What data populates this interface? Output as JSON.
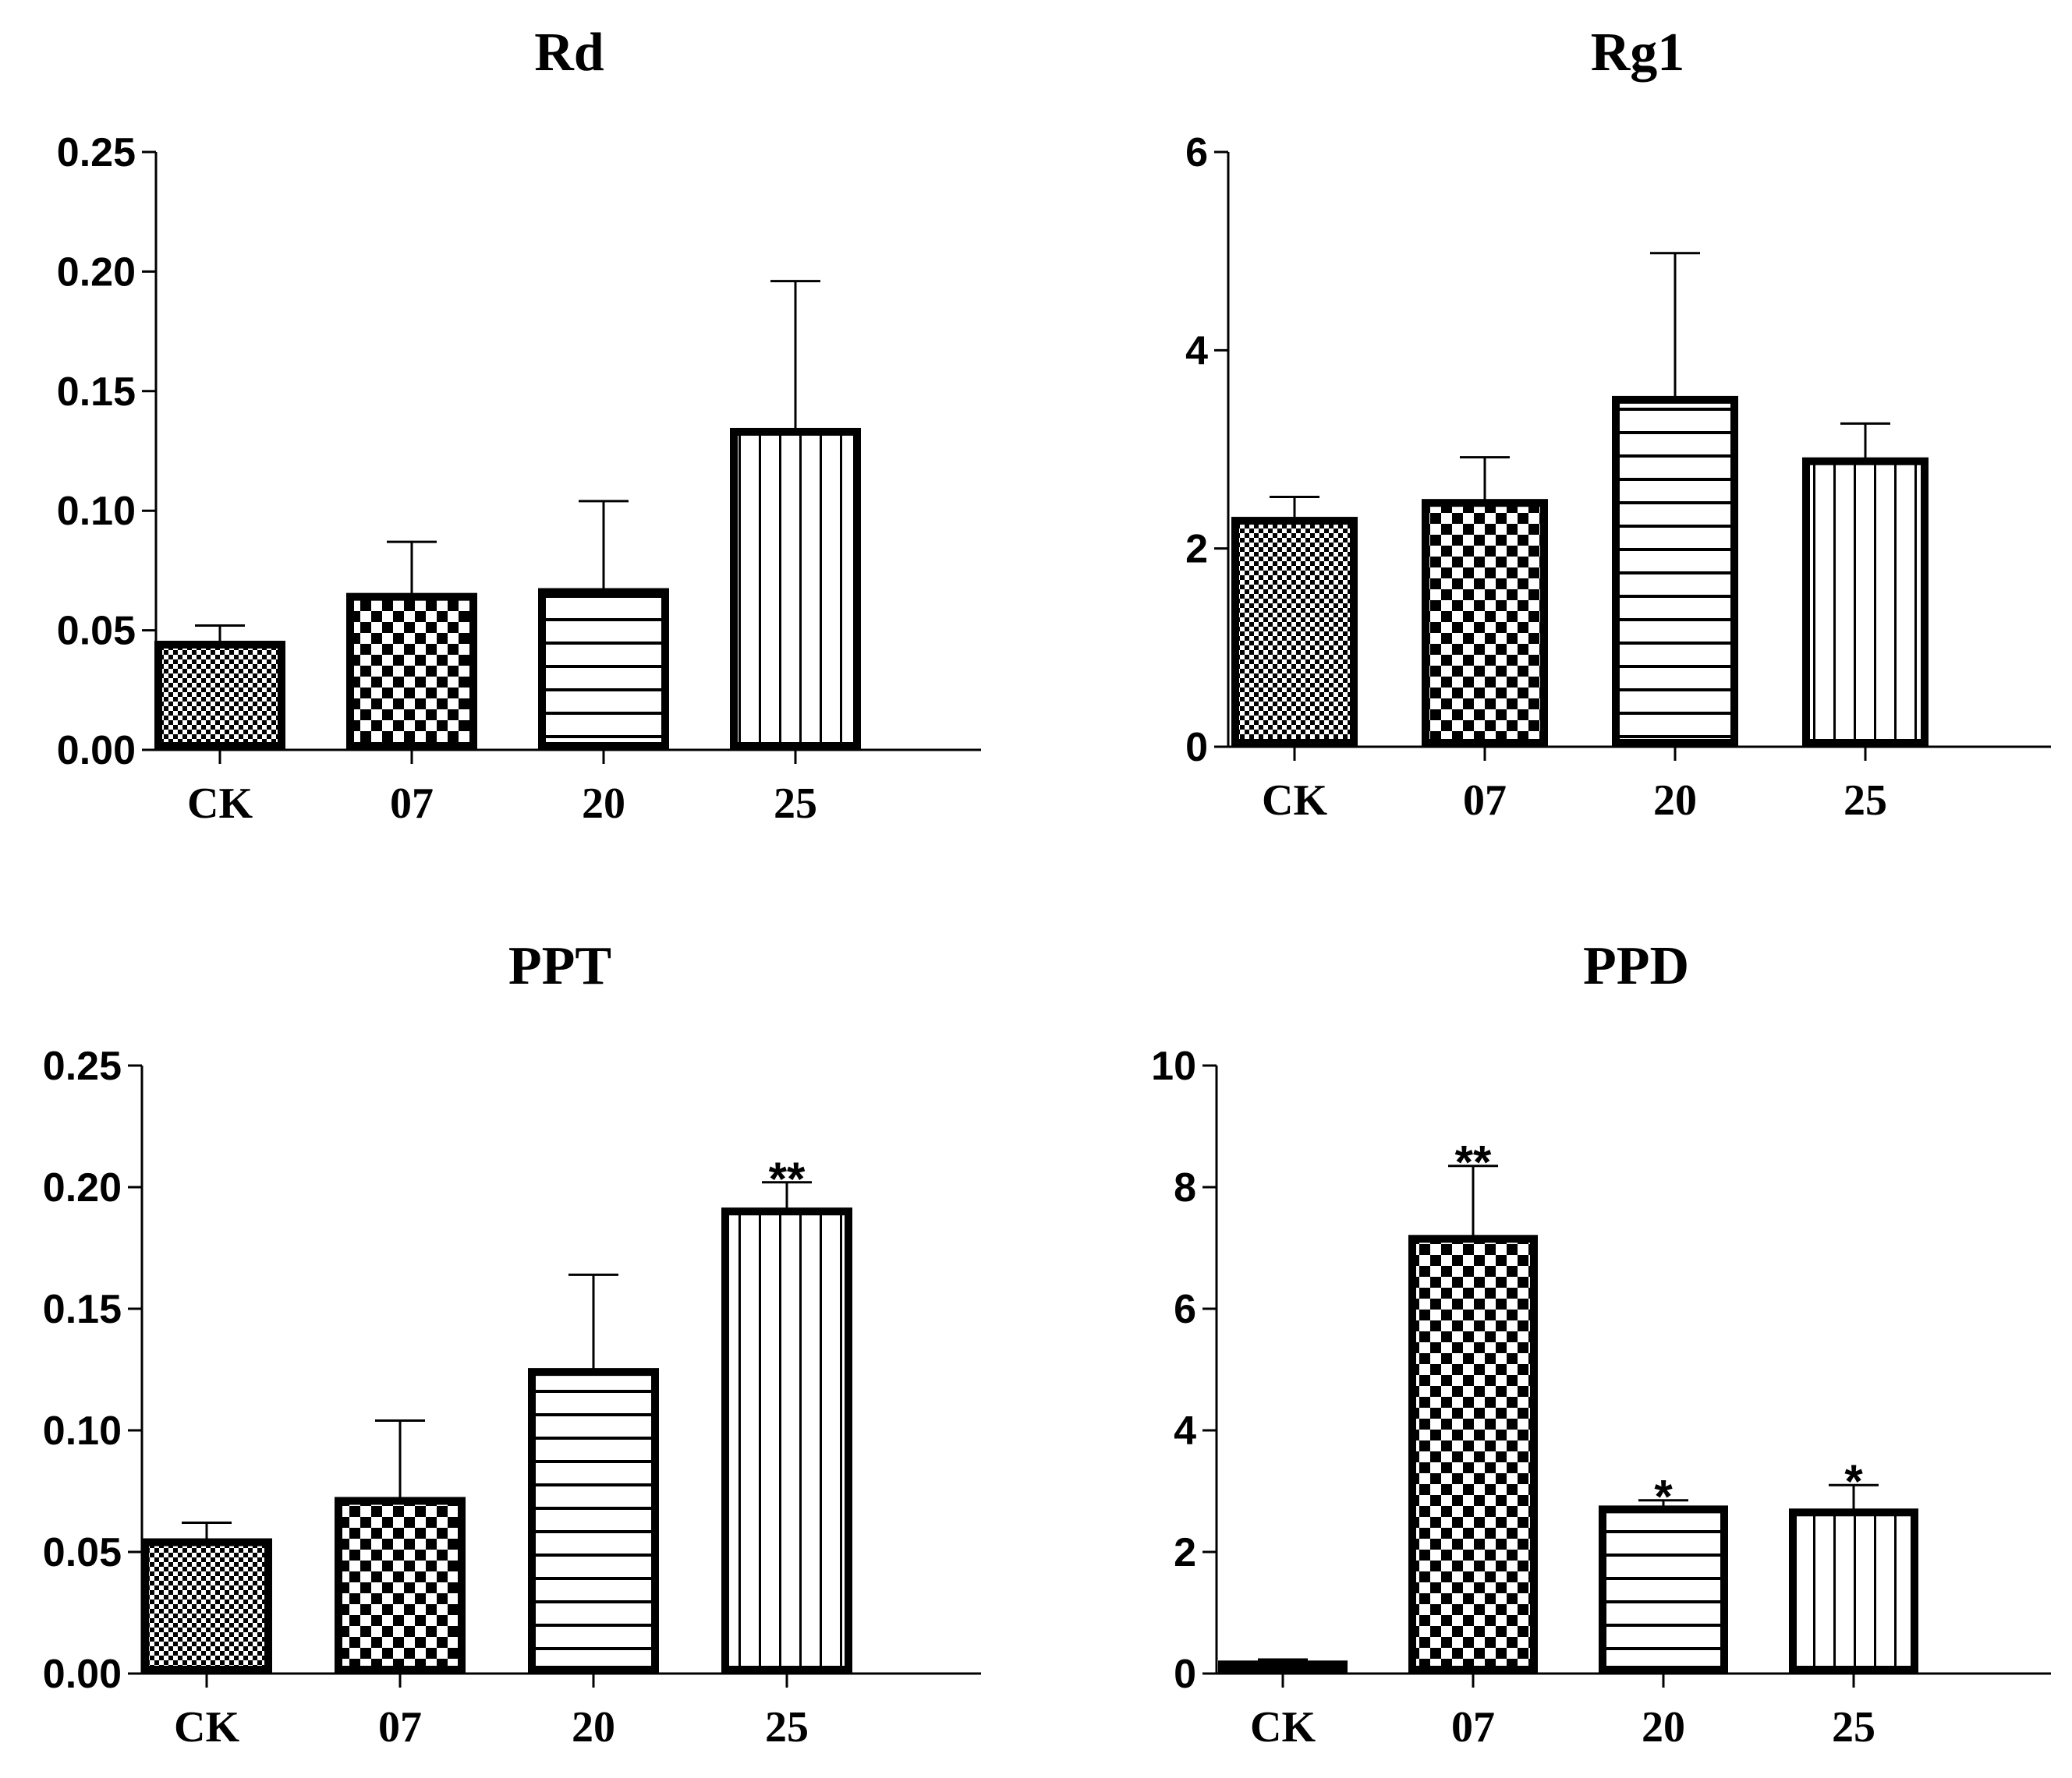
{
  "figure": {
    "background": "#ffffff",
    "ink": "#000000"
  },
  "chart_data": [
    {
      "type": "bar",
      "title": "Rd",
      "categories": [
        "CK",
        "07",
        "20",
        "25"
      ],
      "values": [
        0.044,
        0.064,
        0.066,
        0.133
      ],
      "errors": [
        0.008,
        0.023,
        0.038,
        0.063
      ],
      "patterns": [
        "fine-check",
        "check",
        "horizontal",
        "vertical"
      ],
      "significance": [
        "",
        "",
        "",
        ""
      ],
      "ylim": [
        0,
        0.25
      ],
      "yticks": [
        "0.00",
        "0.05",
        "0.10",
        "0.15",
        "0.20",
        "0.25"
      ],
      "ytick_values": [
        0,
        0.05,
        0.1,
        0.15,
        0.2,
        0.25
      ],
      "xlabel": "",
      "ylabel": ""
    },
    {
      "type": "bar",
      "title": "Rg1",
      "categories": [
        "CK",
        "07",
        "20",
        "25"
      ],
      "values": [
        2.28,
        2.46,
        3.5,
        2.88
      ],
      "errors": [
        0.24,
        0.46,
        1.48,
        0.38
      ],
      "patterns": [
        "fine-check",
        "check",
        "horizontal",
        "vertical"
      ],
      "significance": [
        "",
        "",
        "",
        ""
      ],
      "ylim": [
        0,
        6
      ],
      "yticks": [
        "0",
        "2",
        "4",
        "6"
      ],
      "ytick_values": [
        0,
        2,
        4,
        6
      ],
      "xlabel": "",
      "ylabel": ""
    },
    {
      "type": "bar",
      "title": "PPT",
      "categories": [
        "CK",
        "07",
        "20",
        "25"
      ],
      "values": [
        0.054,
        0.071,
        0.124,
        0.19
      ],
      "errors": [
        0.008,
        0.033,
        0.04,
        0.012
      ],
      "patterns": [
        "fine-check",
        "check",
        "horizontal",
        "vertical"
      ],
      "significance": [
        "",
        "",
        "",
        "**"
      ],
      "ylim": [
        0,
        0.25
      ],
      "yticks": [
        "0.00",
        "0.05",
        "0.10",
        "0.15",
        "0.20",
        "0.25"
      ],
      "ytick_values": [
        0,
        0.05,
        0.1,
        0.15,
        0.2,
        0.25
      ],
      "xlabel": "",
      "ylabel": ""
    },
    {
      "type": "bar",
      "title": "PPD",
      "categories": [
        "CK",
        "07",
        "20",
        "25"
      ],
      "values": [
        0.15,
        7.15,
        2.7,
        2.65
      ],
      "errors": [
        0.08,
        1.2,
        0.15,
        0.45
      ],
      "patterns": [
        "fine-check",
        "check",
        "horizontal",
        "vertical"
      ],
      "significance": [
        "",
        "**",
        "*",
        "*"
      ],
      "ylim": [
        0,
        10
      ],
      "yticks": [
        "0",
        "2",
        "4",
        "6",
        "8",
        "10"
      ],
      "ytick_values": [
        0,
        2,
        4,
        6,
        8,
        10
      ],
      "xlabel": "",
      "ylabel": ""
    }
  ]
}
